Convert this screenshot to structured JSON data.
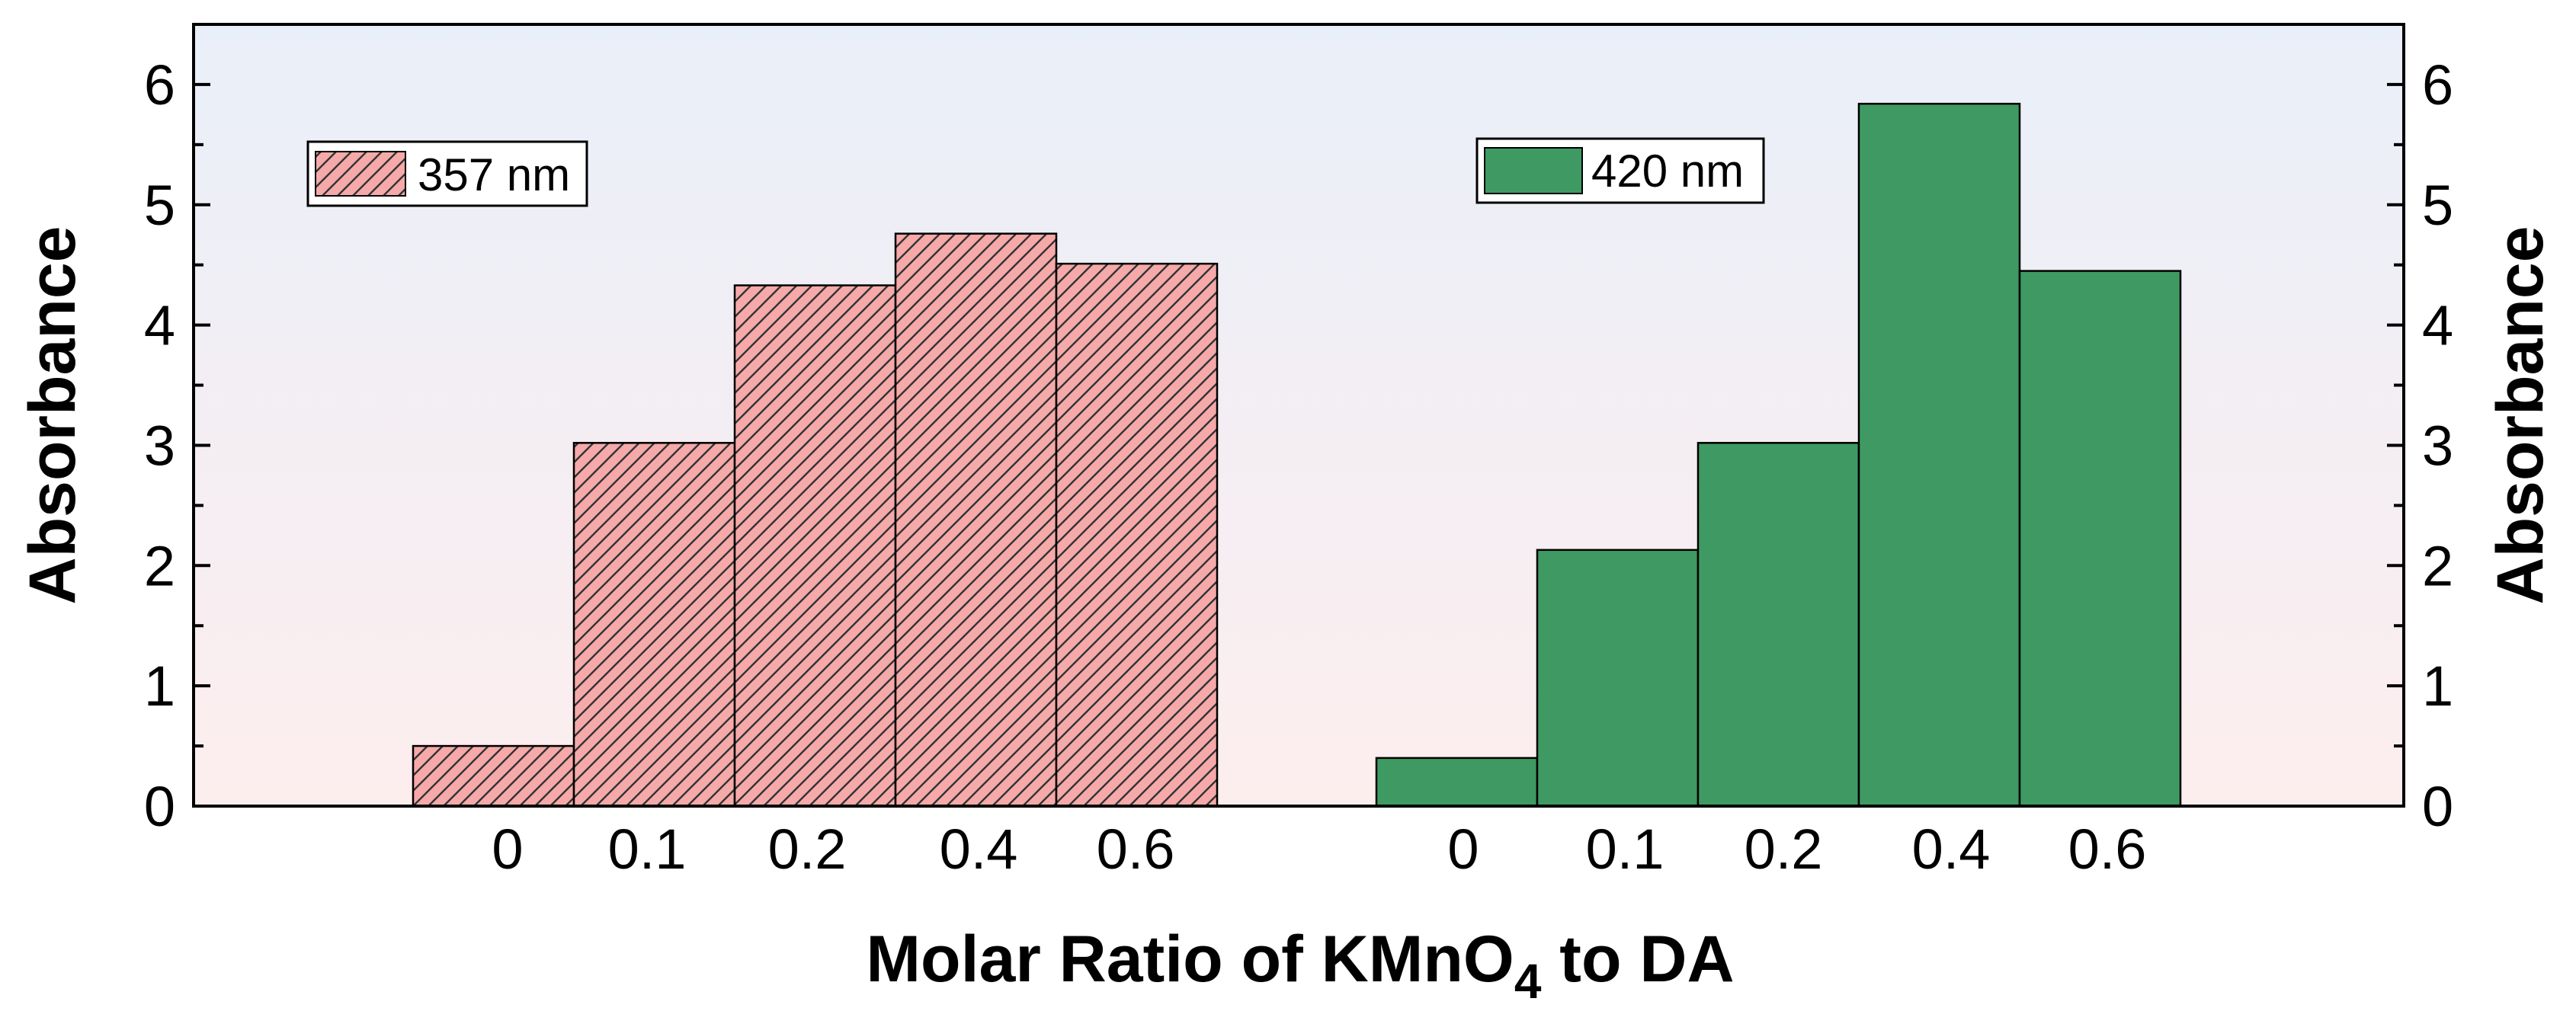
{
  "chart_data": {
    "type": "bar",
    "categories": [
      "0",
      "0.1",
      "0.2",
      "0.4",
      "0.6"
    ],
    "series": [
      {
        "name": "357 nm",
        "values": [
          0.5,
          3.02,
          4.33,
          4.76,
          4.51
        ],
        "color": "#f6a9a9",
        "pattern": "diagonal-hatch",
        "axis": "left"
      },
      {
        "name": "420 nm",
        "values": [
          0.4,
          2.13,
          3.02,
          5.84,
          4.45
        ],
        "color": "#3e9a62",
        "pattern": "solid",
        "axis": "right"
      }
    ],
    "xlabel_prefix": "Molar Ratio of KMnO",
    "xlabel_sub": "4",
    "xlabel_suffix": " to DA",
    "ylabel_left": "Absorbance",
    "ylabel_right": "Absorbance",
    "ylim": [
      0,
      6.5
    ],
    "yticks": [
      0,
      1,
      2,
      3,
      4,
      5,
      6
    ],
    "ytick_labels": [
      "0",
      "1",
      "2",
      "3",
      "4",
      "5",
      "6"
    ],
    "minor_tick_step": 0.5,
    "grid": false,
    "background_gradient": [
      "#e9eff9",
      "#fdeeee"
    ],
    "legend": [
      {
        "label": "357 nm",
        "placement": "top-left"
      },
      {
        "label": "420 nm",
        "placement": "top-center"
      }
    ]
  }
}
